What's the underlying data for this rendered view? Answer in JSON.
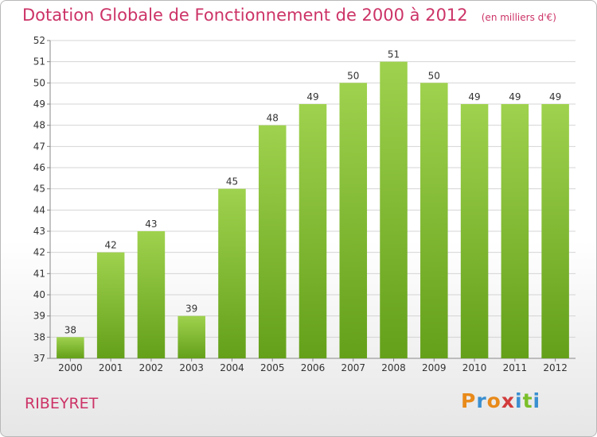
{
  "title": "Dotation Globale de Fonctionnement de 2000 à 2012",
  "unit_label": "(en milliers d'€)",
  "commune": "RIBEYRET",
  "logo": {
    "letters": [
      "P",
      "r",
      "o",
      "x",
      "i",
      "t",
      "i"
    ],
    "colors": [
      "#e88a1a",
      "#3a8fd0",
      "#e88a1a",
      "#d23c3c",
      "#3a8fd0",
      "#7bbf2a",
      "#3a8fd0"
    ]
  },
  "colors": {
    "bar_light": "#9fd24e",
    "bar_dark": "#64a01a",
    "title": "#cc3366"
  },
  "chart_data": {
    "type": "bar",
    "categories": [
      "2000",
      "2001",
      "2002",
      "2003",
      "2004",
      "2005",
      "2006",
      "2007",
      "2008",
      "2009",
      "2010",
      "2011",
      "2012"
    ],
    "values": [
      38,
      42,
      43,
      39,
      45,
      48,
      49,
      50,
      51,
      50,
      49,
      49,
      49
    ],
    "ylim": [
      37,
      52
    ],
    "yticks": [
      37,
      38,
      39,
      40,
      41,
      42,
      43,
      44,
      45,
      46,
      47,
      48,
      49,
      50,
      51,
      52
    ],
    "grid": true,
    "data_labels": true
  }
}
